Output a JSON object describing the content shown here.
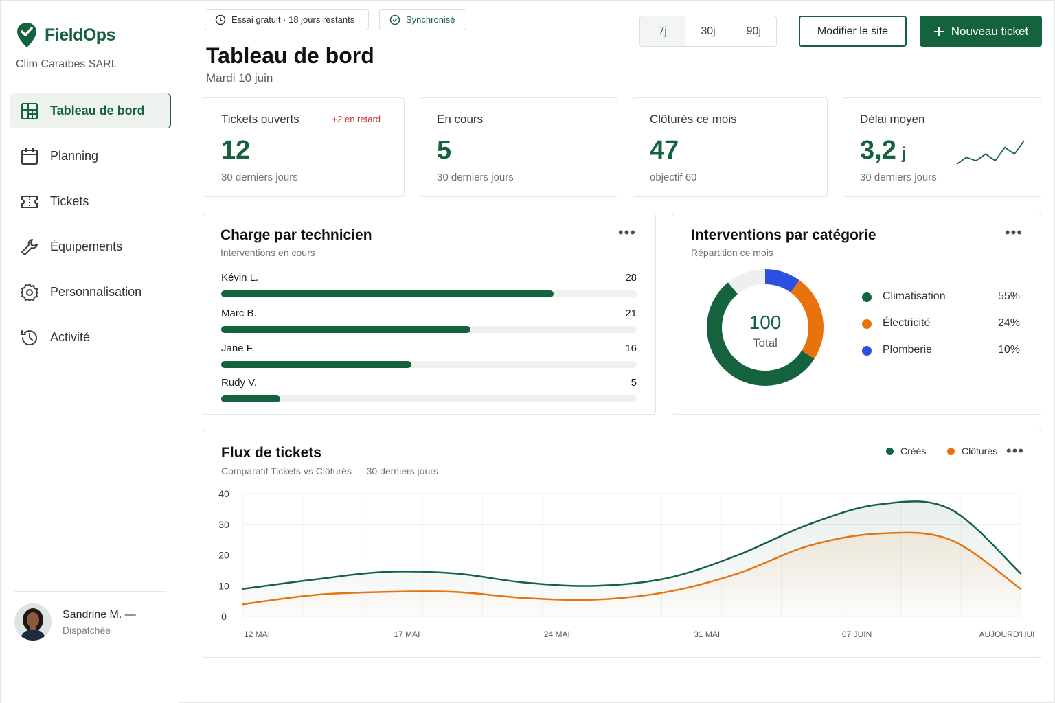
{
  "brand": {
    "name": "FieldOps",
    "company": "Clim Caraïbes SARL"
  },
  "nav": [
    {
      "label": "Tableau de bord",
      "icon": "dashboard-icon",
      "active": true
    },
    {
      "label": "Planning",
      "icon": "calendar-icon"
    },
    {
      "label": "Tickets",
      "icon": "ticket-icon"
    },
    {
      "label": "Équipements",
      "icon": "wrench-icon"
    },
    {
      "label": "Personnalisation",
      "icon": "gear-icon"
    },
    {
      "label": "Activité",
      "icon": "history-icon"
    }
  ],
  "user": {
    "name": "Sandrine M. —",
    "role": "Dispatchée"
  },
  "topbar": {
    "trial": "Essai gratuit · 18 jours restants",
    "sync": "Synchronisé",
    "ranges": [
      "7j",
      "30j",
      "90j"
    ],
    "active_range": "7j",
    "edit_site": "Modifier le site",
    "new_ticket": "Nouveau ticket"
  },
  "header": {
    "title": "Tableau de bord",
    "date": "Mardi 10 juin"
  },
  "kpis": [
    {
      "label": "Tickets ouverts",
      "badge": "+2 en retard",
      "value": "12",
      "sub": "30 derniers jours"
    },
    {
      "label": "En cours",
      "value": "5",
      "sub": "30 derniers jours"
    },
    {
      "label": "Clôturés ce mois",
      "value": "47",
      "sub": "objectif  60"
    },
    {
      "label": "Délai moyen",
      "value": "3,2",
      "unit": "j",
      "sub": "30 derniers jours",
      "sparkline": [
        2,
        4,
        3,
        5,
        3,
        7,
        5,
        9
      ]
    }
  ],
  "technicians": {
    "title": "Charge par technicien",
    "subtitle": "Interventions en cours",
    "max": 35,
    "rows": [
      {
        "name": "Kévin L.",
        "value": 28
      },
      {
        "name": "Marc B.",
        "value": 21
      },
      {
        "name": "Jane F.",
        "value": 16
      },
      {
        "name": "Rudy V.",
        "value": 5
      }
    ]
  },
  "categories": {
    "title": "Interventions par catégorie",
    "subtitle": "Répartition ce mois",
    "total": "100",
    "total_label": "Total",
    "items": [
      {
        "name": "Climatisation",
        "pct": "55%",
        "value": 55,
        "color": "#15623f"
      },
      {
        "name": "Électricité",
        "pct": "24%",
        "value": 24,
        "color": "#e8720c"
      },
      {
        "name": "Plomberie",
        "pct": "10%",
        "value": 10,
        "color": "#2b4fe0"
      }
    ],
    "rest_color": "#eef0ef"
  },
  "chart_data": {
    "type": "area",
    "title": "Flux de tickets",
    "subtitle": "Comparatif  Tickets vs Clôturés — 30 derniers jours",
    "x_labels": [
      "12 MAI",
      "17 MAI",
      "24 MAI",
      "31 MAI",
      "07 JUIN",
      "AUJOURD'HUI"
    ],
    "yticks": [
      0,
      10,
      20,
      30,
      40
    ],
    "ylim": [
      0,
      40
    ],
    "grid": true,
    "legend": "top-right",
    "series": [
      {
        "name": "Créés",
        "color": "#15623f",
        "values": [
          9,
          12,
          14.5,
          14,
          11,
          10,
          12.5,
          20,
          30,
          36.5,
          35,
          14
        ]
      },
      {
        "name": "Clôturés",
        "color": "#e8720c",
        "values": [
          4,
          7,
          8,
          8,
          6,
          5.5,
          8,
          14,
          23,
          27,
          25,
          9
        ]
      }
    ]
  }
}
